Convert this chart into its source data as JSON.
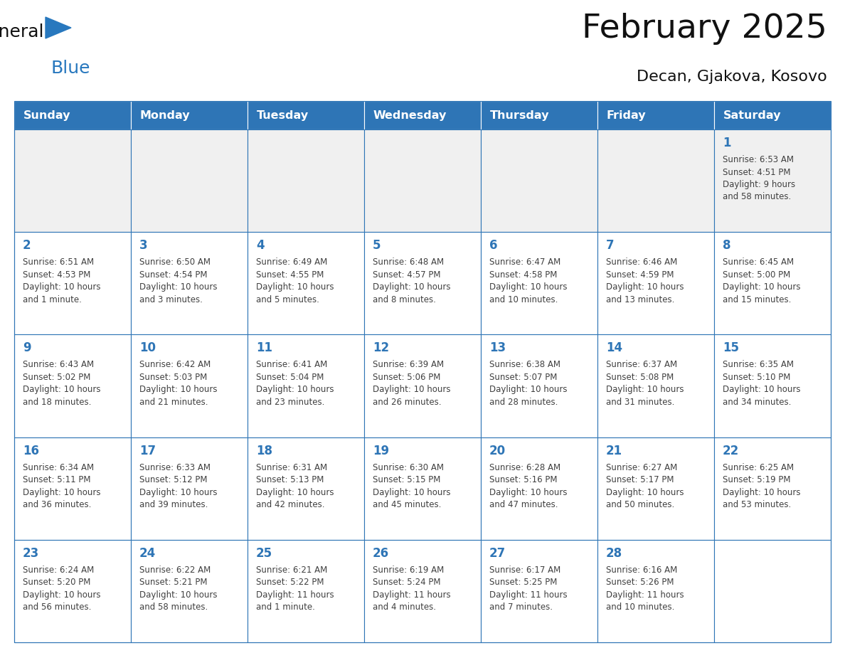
{
  "title": "February 2025",
  "subtitle": "Decan, Gjakova, Kosovo",
  "days_of_week": [
    "Sunday",
    "Monday",
    "Tuesday",
    "Wednesday",
    "Thursday",
    "Friday",
    "Saturday"
  ],
  "header_bg": "#2E75B6",
  "header_text": "#FFFFFF",
  "cell_bg": "#FFFFFF",
  "first_row_bg": "#F0F0F0",
  "border_color": "#2E75B6",
  "text_color": "#404040",
  "day_number_color": "#2E75B6",
  "title_color": "#111111",
  "subtitle_color": "#111111",
  "logo_general_color": "#111111",
  "logo_blue_color": "#2878BE",
  "calendar_data": [
    [
      {
        "day": null,
        "info": ""
      },
      {
        "day": null,
        "info": ""
      },
      {
        "day": null,
        "info": ""
      },
      {
        "day": null,
        "info": ""
      },
      {
        "day": null,
        "info": ""
      },
      {
        "day": null,
        "info": ""
      },
      {
        "day": 1,
        "info": "Sunrise: 6:53 AM\nSunset: 4:51 PM\nDaylight: 9 hours\nand 58 minutes."
      }
    ],
    [
      {
        "day": 2,
        "info": "Sunrise: 6:51 AM\nSunset: 4:53 PM\nDaylight: 10 hours\nand 1 minute."
      },
      {
        "day": 3,
        "info": "Sunrise: 6:50 AM\nSunset: 4:54 PM\nDaylight: 10 hours\nand 3 minutes."
      },
      {
        "day": 4,
        "info": "Sunrise: 6:49 AM\nSunset: 4:55 PM\nDaylight: 10 hours\nand 5 minutes."
      },
      {
        "day": 5,
        "info": "Sunrise: 6:48 AM\nSunset: 4:57 PM\nDaylight: 10 hours\nand 8 minutes."
      },
      {
        "day": 6,
        "info": "Sunrise: 6:47 AM\nSunset: 4:58 PM\nDaylight: 10 hours\nand 10 minutes."
      },
      {
        "day": 7,
        "info": "Sunrise: 6:46 AM\nSunset: 4:59 PM\nDaylight: 10 hours\nand 13 minutes."
      },
      {
        "day": 8,
        "info": "Sunrise: 6:45 AM\nSunset: 5:00 PM\nDaylight: 10 hours\nand 15 minutes."
      }
    ],
    [
      {
        "day": 9,
        "info": "Sunrise: 6:43 AM\nSunset: 5:02 PM\nDaylight: 10 hours\nand 18 minutes."
      },
      {
        "day": 10,
        "info": "Sunrise: 6:42 AM\nSunset: 5:03 PM\nDaylight: 10 hours\nand 21 minutes."
      },
      {
        "day": 11,
        "info": "Sunrise: 6:41 AM\nSunset: 5:04 PM\nDaylight: 10 hours\nand 23 minutes."
      },
      {
        "day": 12,
        "info": "Sunrise: 6:39 AM\nSunset: 5:06 PM\nDaylight: 10 hours\nand 26 minutes."
      },
      {
        "day": 13,
        "info": "Sunrise: 6:38 AM\nSunset: 5:07 PM\nDaylight: 10 hours\nand 28 minutes."
      },
      {
        "day": 14,
        "info": "Sunrise: 6:37 AM\nSunset: 5:08 PM\nDaylight: 10 hours\nand 31 minutes."
      },
      {
        "day": 15,
        "info": "Sunrise: 6:35 AM\nSunset: 5:10 PM\nDaylight: 10 hours\nand 34 minutes."
      }
    ],
    [
      {
        "day": 16,
        "info": "Sunrise: 6:34 AM\nSunset: 5:11 PM\nDaylight: 10 hours\nand 36 minutes."
      },
      {
        "day": 17,
        "info": "Sunrise: 6:33 AM\nSunset: 5:12 PM\nDaylight: 10 hours\nand 39 minutes."
      },
      {
        "day": 18,
        "info": "Sunrise: 6:31 AM\nSunset: 5:13 PM\nDaylight: 10 hours\nand 42 minutes."
      },
      {
        "day": 19,
        "info": "Sunrise: 6:30 AM\nSunset: 5:15 PM\nDaylight: 10 hours\nand 45 minutes."
      },
      {
        "day": 20,
        "info": "Sunrise: 6:28 AM\nSunset: 5:16 PM\nDaylight: 10 hours\nand 47 minutes."
      },
      {
        "day": 21,
        "info": "Sunrise: 6:27 AM\nSunset: 5:17 PM\nDaylight: 10 hours\nand 50 minutes."
      },
      {
        "day": 22,
        "info": "Sunrise: 6:25 AM\nSunset: 5:19 PM\nDaylight: 10 hours\nand 53 minutes."
      }
    ],
    [
      {
        "day": 23,
        "info": "Sunrise: 6:24 AM\nSunset: 5:20 PM\nDaylight: 10 hours\nand 56 minutes."
      },
      {
        "day": 24,
        "info": "Sunrise: 6:22 AM\nSunset: 5:21 PM\nDaylight: 10 hours\nand 58 minutes."
      },
      {
        "day": 25,
        "info": "Sunrise: 6:21 AM\nSunset: 5:22 PM\nDaylight: 11 hours\nand 1 minute."
      },
      {
        "day": 26,
        "info": "Sunrise: 6:19 AM\nSunset: 5:24 PM\nDaylight: 11 hours\nand 4 minutes."
      },
      {
        "day": 27,
        "info": "Sunrise: 6:17 AM\nSunset: 5:25 PM\nDaylight: 11 hours\nand 7 minutes."
      },
      {
        "day": 28,
        "info": "Sunrise: 6:16 AM\nSunset: 5:26 PM\nDaylight: 11 hours\nand 10 minutes."
      },
      {
        "day": null,
        "info": ""
      }
    ]
  ]
}
